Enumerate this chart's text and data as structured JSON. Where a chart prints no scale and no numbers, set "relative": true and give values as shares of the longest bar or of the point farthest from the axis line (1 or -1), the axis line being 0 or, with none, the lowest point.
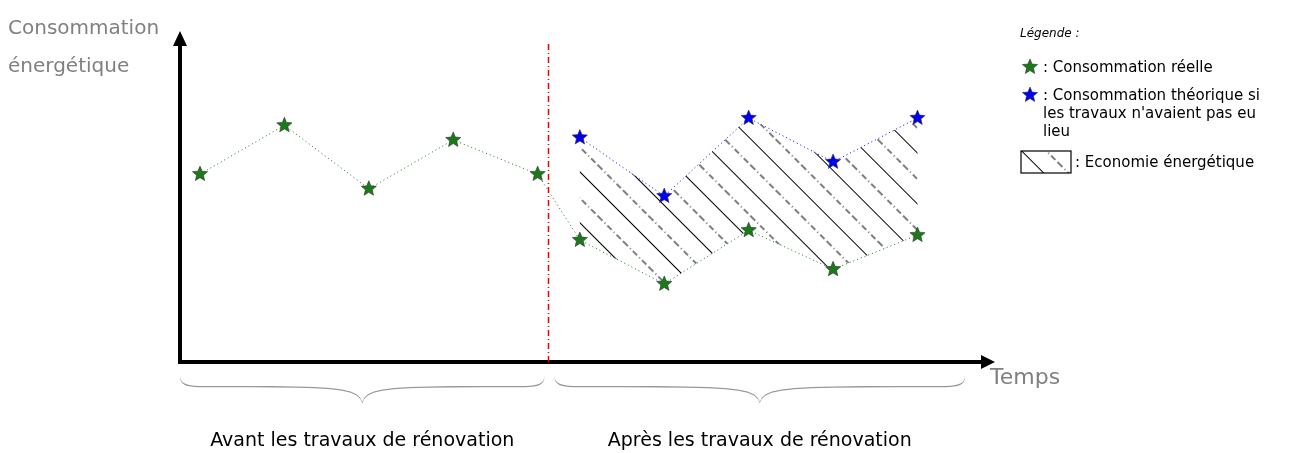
{
  "chart_data": {
    "type": "line",
    "relative": true,
    "xlabel": "Temps",
    "ylabel": "Consommation énergétique",
    "legend_title": "Légende :",
    "legend": "top right",
    "marker": "star",
    "line_style": "dotted",
    "categories": [
      null,
      null,
      null,
      null,
      null,
      null,
      null,
      null,
      null,
      null,
      null,
      null,
      null,
      null,
      null,
      null,
      null,
      null,
      null,
      null,
      null,
      null,
      null,
      null,
      null,
      null,
      null,
      null,
      null,
      null,
      null,
      null,
      null,
      null,
      null
    ],
    "series": [
      {
        "name": ": Consommation réelle",
        "color": "#1a7a1a",
        "values": [
          0.77,
          null,
          null,
          null,
          0.97,
          null,
          null,
          null,
          0.71,
          null,
          null,
          null,
          0.91,
          null,
          null,
          null,
          0.77,
          null,
          0.5,
          null,
          null,
          null,
          0.32,
          null,
          null,
          null,
          0.54,
          null,
          null,
          null,
          0.38,
          null,
          null,
          null,
          0.52
        ]
      },
      {
        "name": ": Consommation théorique si les travaux n'avaient pas eu lieu",
        "color": "#0000ee",
        "values": [
          null,
          null,
          null,
          null,
          null,
          null,
          null,
          null,
          null,
          null,
          null,
          null,
          null,
          null,
          null,
          null,
          null,
          null,
          0.92,
          null,
          null,
          null,
          0.68,
          null,
          null,
          null,
          1.0,
          null,
          null,
          null,
          0.82,
          null,
          null,
          null,
          1.0
        ],
        "lower": [
          null,
          null,
          null,
          null,
          null,
          null,
          null,
          null,
          null,
          null,
          null,
          null,
          null,
          null,
          null,
          null,
          null,
          null,
          0.5,
          null,
          null,
          null,
          0.32,
          null,
          null,
          null,
          0.54,
          null,
          null,
          null,
          0.38,
          null,
          null,
          null,
          0.52
        ],
        "upper": [
          null,
          null,
          null,
          null,
          null,
          null,
          null,
          null,
          null,
          null,
          null,
          null,
          null,
          null,
          null,
          null,
          null,
          null,
          0.92,
          null,
          null,
          null,
          0.68,
          null,
          null,
          null,
          1.0,
          null,
          null,
          null,
          0.82,
          null,
          null,
          null,
          1.0
        ]
      }
    ],
    "annotations": [
      ": Economie énergétique",
      "Avant les travaux de rénovation",
      "Après les travaux de rénovation"
    ]
  }
}
